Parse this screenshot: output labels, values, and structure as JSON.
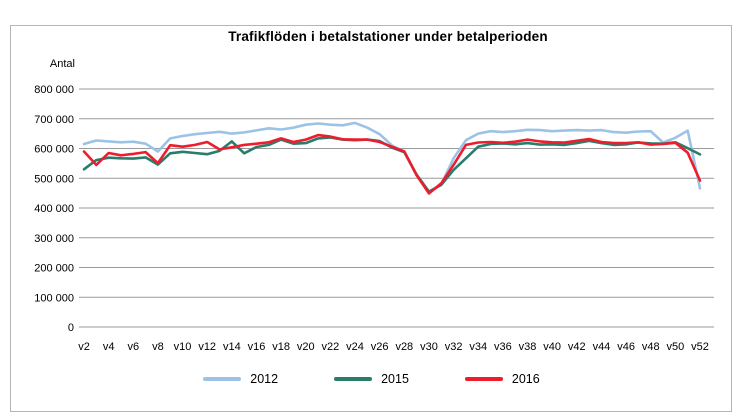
{
  "chart_data": {
    "type": "line",
    "title": "Trafikflöden i betalstationer under betalperioden",
    "ylabel": "Antal",
    "x_unit": "week",
    "x_range": [
      2,
      52
    ],
    "ylim": [
      0,
      800000
    ],
    "grid": "horizontal",
    "legend_position": "bottom",
    "y_ticks": [
      {
        "value": 800000,
        "label": "800 000"
      },
      {
        "value": 700000,
        "label": "700 000"
      },
      {
        "value": 600000,
        "label": "600 000"
      },
      {
        "value": 500000,
        "label": "500 000"
      },
      {
        "value": 400000,
        "label": "400 000"
      },
      {
        "value": 300000,
        "label": "300 000"
      },
      {
        "value": 200000,
        "label": "200 000"
      },
      {
        "value": 100000,
        "label": "100 000"
      },
      {
        "value": 0,
        "label": "0"
      }
    ],
    "x_ticks": [
      {
        "week": 2,
        "label": "v2"
      },
      {
        "week": 4,
        "label": "v4"
      },
      {
        "week": 6,
        "label": "v6"
      },
      {
        "week": 8,
        "label": "v8"
      },
      {
        "week": 10,
        "label": "v10"
      },
      {
        "week": 12,
        "label": "v12"
      },
      {
        "week": 14,
        "label": "v14"
      },
      {
        "week": 16,
        "label": "v16"
      },
      {
        "week": 18,
        "label": "v18"
      },
      {
        "week": 20,
        "label": "v20"
      },
      {
        "week": 22,
        "label": "v22"
      },
      {
        "week": 24,
        "label": "v24"
      },
      {
        "week": 26,
        "label": "v26"
      },
      {
        "week": 28,
        "label": "v28"
      },
      {
        "week": 30,
        "label": "v30"
      },
      {
        "week": 32,
        "label": "v32"
      },
      {
        "week": 34,
        "label": "v34"
      },
      {
        "week": 36,
        "label": "v36"
      },
      {
        "week": 38,
        "label": "v38"
      },
      {
        "week": 40,
        "label": "v40"
      },
      {
        "week": 42,
        "label": "v42"
      },
      {
        "week": 44,
        "label": "v44"
      },
      {
        "week": 46,
        "label": "v46"
      },
      {
        "week": 48,
        "label": "v48"
      },
      {
        "week": 50,
        "label": "v50"
      },
      {
        "week": 52,
        "label": "v52"
      }
    ],
    "series": [
      {
        "name": "2012",
        "color": "#9CC3E5",
        "values": [
          615000,
          627000,
          624000,
          621000,
          623000,
          616000,
          590000,
          634000,
          642000,
          648000,
          652000,
          656000,
          650000,
          654000,
          661000,
          668000,
          664000,
          670000,
          680000,
          684000,
          680000,
          678000,
          686000,
          670000,
          648000,
          610000,
          590000,
          512000,
          452000,
          480000,
          567000,
          628000,
          650000,
          658000,
          655000,
          658000,
          663000,
          662000,
          658000,
          660000,
          662000,
          660000,
          662000,
          655000,
          653000,
          657000,
          658000,
          620000,
          636000,
          660000,
          466000
        ]
      },
      {
        "name": "2015",
        "color": "#2A7C6C",
        "values": [
          530000,
          561000,
          569000,
          567000,
          566000,
          570000,
          546000,
          584000,
          589000,
          585000,
          581000,
          592000,
          624000,
          584000,
          605000,
          612000,
          630000,
          616000,
          618000,
          634000,
          637000,
          630000,
          628000,
          630000,
          625000,
          603000,
          588000,
          512000,
          455000,
          478000,
          528000,
          567000,
          606000,
          615000,
          617000,
          614000,
          618000,
          613000,
          614000,
          612000,
          618000,
          626000,
          618000,
          612000,
          614000,
          620000,
          617000,
          616000,
          621000,
          601000,
          580000
        ]
      },
      {
        "name": "2016",
        "color": "#EE1C2D",
        "values": [
          590000,
          545000,
          585000,
          577000,
          582000,
          588000,
          551000,
          611000,
          606000,
          612000,
          622000,
          597000,
          604000,
          612000,
          616000,
          621000,
          634000,
          622000,
          630000,
          645000,
          640000,
          631000,
          630000,
          630000,
          622000,
          606000,
          590000,
          510000,
          449000,
          483000,
          545000,
          612000,
          620000,
          622000,
          619000,
          623000,
          630000,
          624000,
          621000,
          620000,
          626000,
          632000,
          622000,
          618000,
          618000,
          621000,
          613000,
          615000,
          619000,
          586000,
          492000
        ]
      }
    ]
  }
}
